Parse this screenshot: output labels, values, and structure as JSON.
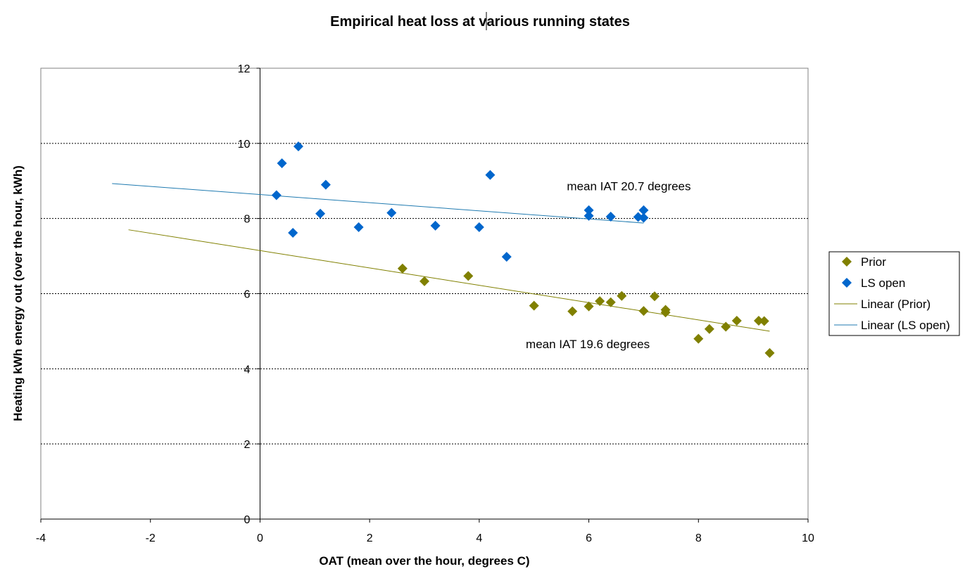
{
  "chart_data": {
    "type": "scatter",
    "title": "Empirical heat loss at various running states",
    "xlabel": "OAT (mean over the hour, degrees C)",
    "ylabel": "Heating kWh energy out (over the hour, kWh)",
    "xlim": [
      -4,
      10
    ],
    "ylim": [
      0,
      12
    ],
    "x_ticks": [
      -4,
      -2,
      0,
      2,
      4,
      6,
      8,
      10
    ],
    "y_ticks": [
      0,
      2,
      4,
      6,
      8,
      10,
      12
    ],
    "grid": "horizontal dashed",
    "legend_position": "right",
    "series": [
      {
        "name": "Prior",
        "marker": "diamond",
        "color": "#808000",
        "points": [
          [
            2.6,
            6.67
          ],
          [
            3.0,
            6.33
          ],
          [
            3.8,
            6.47
          ],
          [
            5.0,
            5.68
          ],
          [
            5.7,
            5.53
          ],
          [
            6.0,
            5.66
          ],
          [
            6.2,
            5.8
          ],
          [
            6.4,
            5.77
          ],
          [
            6.6,
            5.94
          ],
          [
            7.0,
            5.54
          ],
          [
            7.2,
            5.93
          ],
          [
            7.4,
            5.5
          ],
          [
            7.4,
            5.57
          ],
          [
            8.0,
            4.8
          ],
          [
            8.2,
            5.06
          ],
          [
            8.5,
            5.12
          ],
          [
            8.7,
            5.28
          ],
          [
            9.1,
            5.28
          ],
          [
            9.2,
            5.27
          ],
          [
            9.3,
            4.42
          ]
        ]
      },
      {
        "name": "LS open",
        "marker": "diamond",
        "color": "#0066cc",
        "points": [
          [
            0.3,
            8.62
          ],
          [
            0.4,
            9.47
          ],
          [
            0.6,
            7.62
          ],
          [
            0.7,
            9.92
          ],
          [
            1.1,
            8.13
          ],
          [
            1.2,
            8.9
          ],
          [
            1.8,
            7.77
          ],
          [
            2.4,
            8.15
          ],
          [
            3.2,
            7.81
          ],
          [
            4.0,
            7.77
          ],
          [
            4.2,
            9.16
          ],
          [
            4.5,
            6.98
          ],
          [
            6.0,
            8.22
          ],
          [
            6.0,
            8.07
          ],
          [
            6.4,
            8.05
          ],
          [
            6.9,
            8.04
          ],
          [
            7.0,
            8.22
          ],
          [
            7.0,
            8.02
          ]
        ]
      }
    ],
    "trendlines": [
      {
        "name": "Linear (Prior)",
        "color": "#808000",
        "x": [
          -2.4,
          9.3
        ],
        "y": [
          7.7,
          5.0
        ]
      },
      {
        "name": "Linear (LS open)",
        "color": "#1f7ab0",
        "x": [
          -2.7,
          7.0
        ],
        "y": [
          8.93,
          7.88
        ]
      }
    ],
    "annotations": [
      {
        "text": "mean IAT 20.7 degrees",
        "x": 5.6,
        "y": 8.75
      },
      {
        "text": "mean IAT 19.6 degrees",
        "x": 4.85,
        "y": 4.55
      }
    ]
  }
}
